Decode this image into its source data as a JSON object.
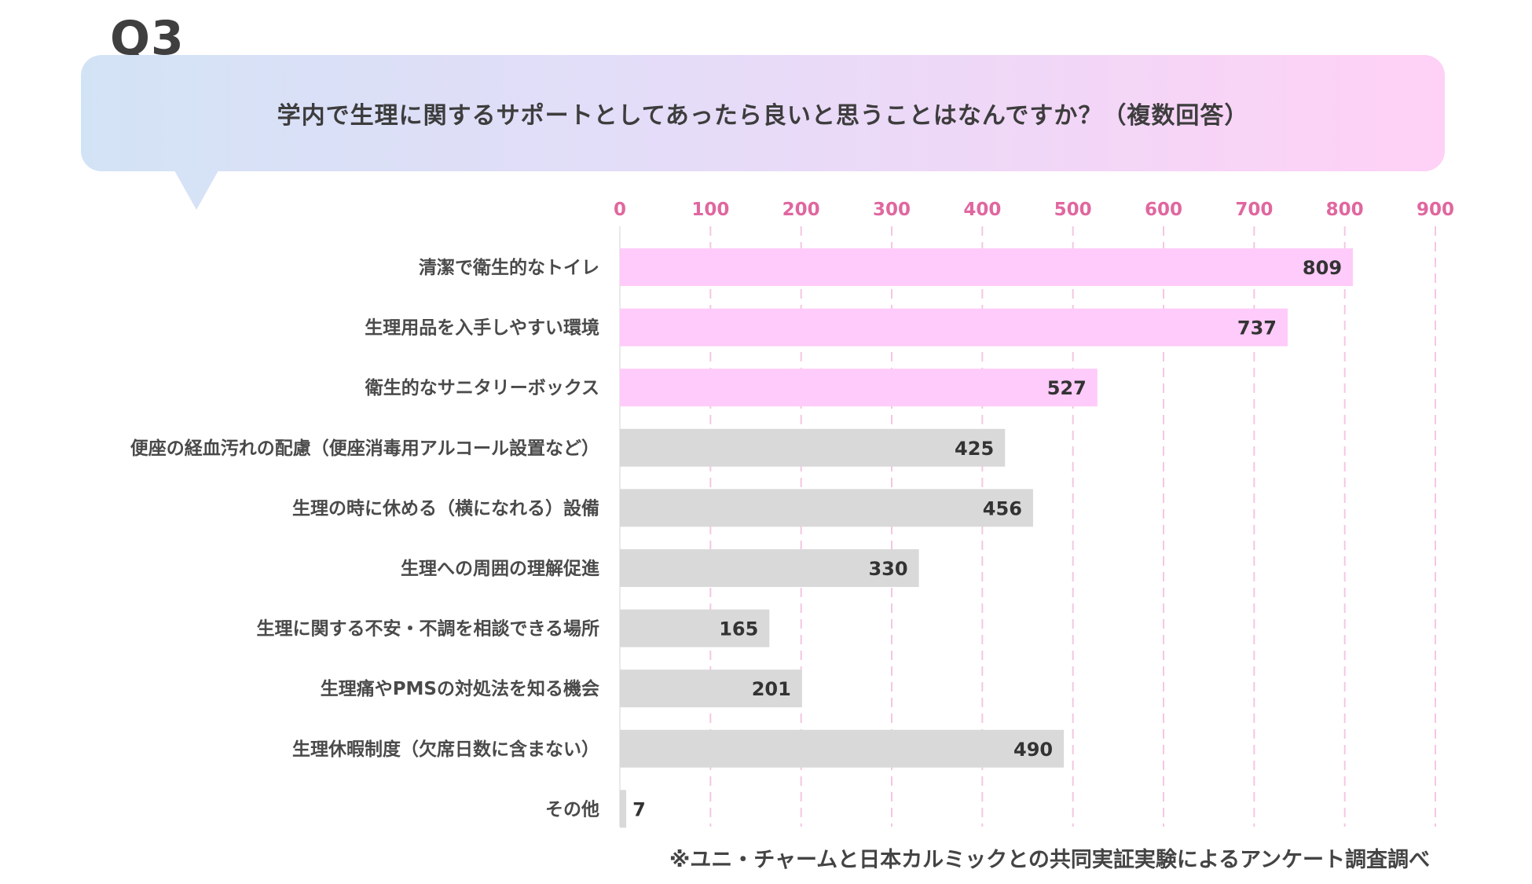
{
  "header": {
    "question_number": "Q3",
    "question": "学内で生理に関するサポートとしてあったら良いと思うことはなんですか？（複数回答）"
  },
  "footnote": "※ユニ・チャームと日本カルミックとの共同実証実験によるアンケート調査調べ",
  "colors": {
    "highlight_bar": "#ffcbfa",
    "normal_bar": "#d9d9d9",
    "tick_text": "#e0679f",
    "grid_line": "#f5c6e3"
  },
  "chart_data": {
    "type": "bar",
    "orientation": "horizontal",
    "xlim": [
      0,
      900
    ],
    "ticks": [
      0,
      100,
      200,
      300,
      400,
      500,
      600,
      700,
      800,
      900
    ],
    "tick_position": "top",
    "grid": true,
    "categories": [
      "清潔で衛生的なトイレ",
      "生理用品を入手しやすい環境",
      "衛生的なサニタリーボックス",
      "便座の経血汚れの配慮（便座消毒用アルコール設置など）",
      "生理の時に休める（横になれる）設備",
      "生理への周囲の理解促進",
      "生理に関する不安・不調を相談できる場所",
      "生理痛やPMSの対処法を知る機会",
      "生理休暇制度（欠席日数に含まない）",
      "その他"
    ],
    "values": [
      809,
      737,
      527,
      425,
      456,
      330,
      165,
      201,
      490,
      7
    ],
    "highlighted": [
      true,
      true,
      true,
      false,
      false,
      false,
      false,
      false,
      false,
      false
    ]
  }
}
